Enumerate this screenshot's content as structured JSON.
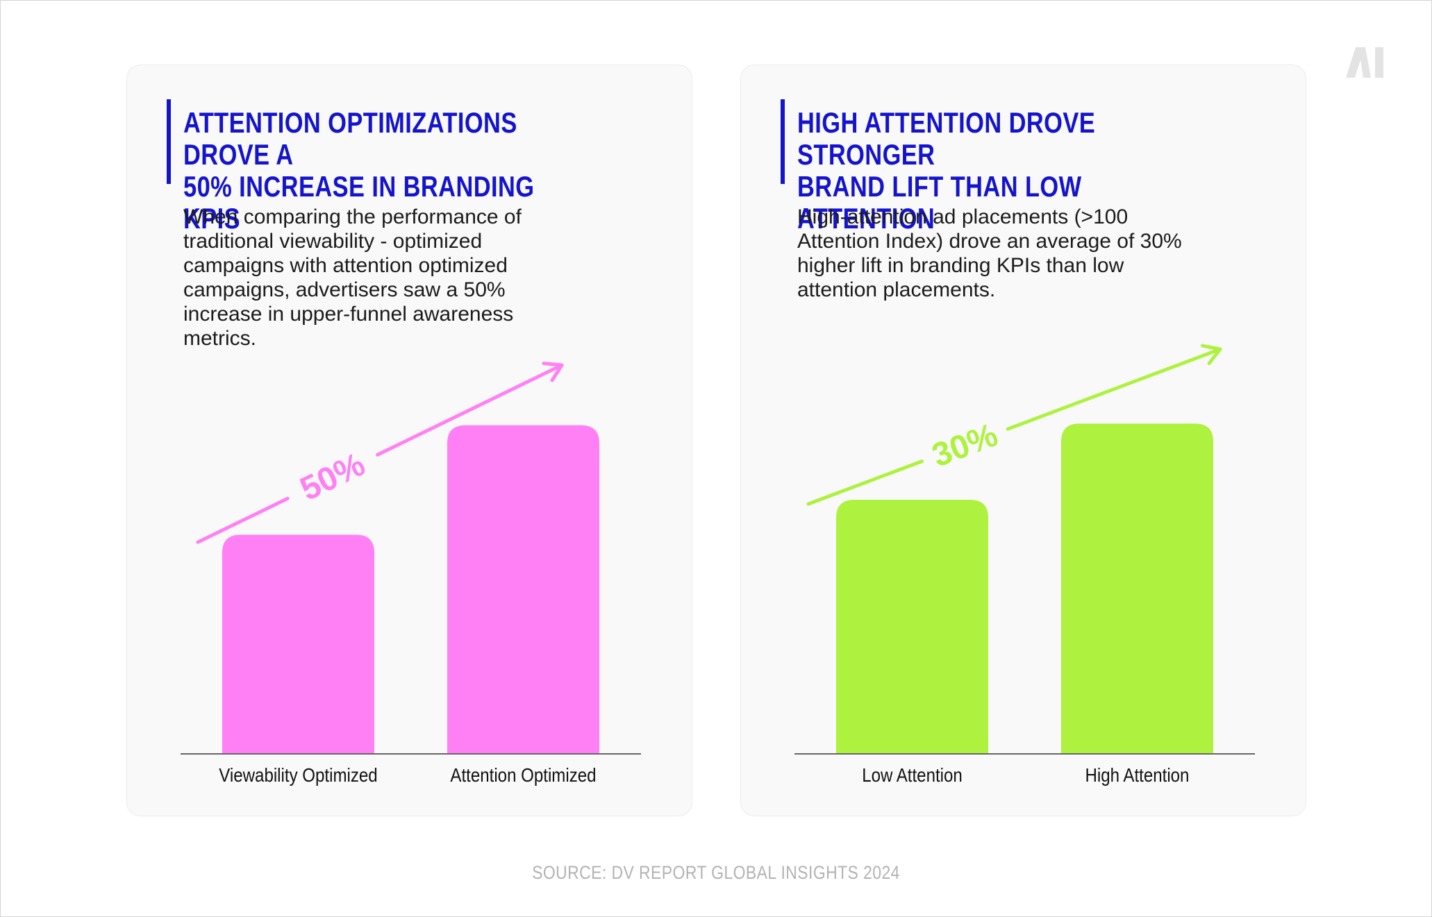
{
  "colors": {
    "title": "#1414cc",
    "left_accent": "#ff80f5",
    "right_accent": "#aef23f",
    "axis": "#666666",
    "label": "#111111"
  },
  "logo_icon": "ai-logo-icon",
  "source": "SOURCE: DV REPORT GLOBAL INSIGHTS 2024",
  "chart_data": [
    {
      "type": "bar",
      "title": "ATTENTION OPTIMIZATIONS DROVE A\n50% INCREASE IN BRANDING KPIS",
      "description": "When comparing the performance of\ntraditional viewability - optimized\ncampaigns with attention optimized\ncampaigns, advertisers saw a 50%\nincrease in upper-funnel awareness\nmetrics.",
      "categories": [
        "Viewability Optimized",
        "Attention Optimized"
      ],
      "values": [
        100,
        150
      ],
      "ylim": [
        0,
        160
      ],
      "annotation": "50%",
      "accent": "#ff80f5"
    },
    {
      "type": "bar",
      "title": "HIGH ATTENTION DROVE STRONGER\nBRAND LIFT THAN LOW ATTENTION",
      "description": "High-attention ad placements (>100\nAttention Index) drove an average of 30%\nhigher lift in branding KPIs than low\nattention placements.",
      "categories": [
        "Low Attention",
        "High Attention"
      ],
      "values": [
        100,
        130
      ],
      "ylim": [
        0,
        138
      ],
      "annotation": "30%",
      "accent": "#aef23f"
    }
  ]
}
